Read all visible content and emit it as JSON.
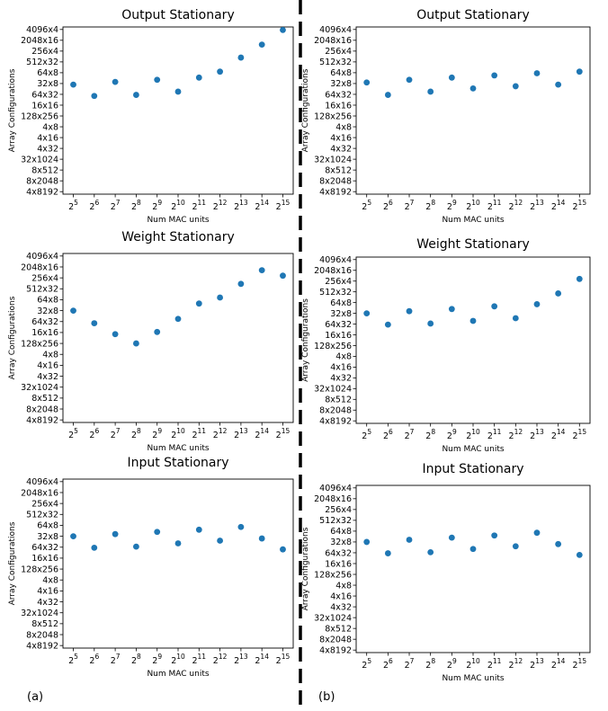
{
  "panel_labels": [
    "(a)",
    "(b)"
  ],
  "chart_data": [
    {
      "type": "scatter",
      "title": "Output Stationary",
      "xlabel": "Num MAC units",
      "ylabel": "Array Configurations",
      "x": [
        "2^5",
        "2^6",
        "2^7",
        "2^8",
        "2^9",
        "2^10",
        "2^11",
        "2^12",
        "2^13",
        "2^14",
        "2^15"
      ],
      "y_ticks": [
        "4096x4",
        "2048x16",
        "256x4",
        "512x32",
        "64x8",
        "32x8",
        "64x32",
        "16x16",
        "128x256",
        "4x8",
        "4x16",
        "4x32",
        "32x1024",
        "8x512",
        "8x2048",
        "4x8192"
      ],
      "y_values": [
        9.9,
        8.85,
        10.15,
        8.95,
        10.35,
        9.25,
        10.55,
        11.1,
        12.4,
        13.6,
        14.95
      ],
      "color": "#1f77b4",
      "series": [
        {
          "values": [
            9.9,
            8.85,
            10.15,
            8.95,
            10.35,
            9.25,
            10.55,
            11.1,
            12.4,
            13.6,
            14.95
          ]
        }
      ]
    },
    {
      "type": "scatter",
      "title": "Output Stationary",
      "xlabel": "Num MAC units",
      "ylabel": "Array Configurations",
      "x": [
        "2^5",
        "2^6",
        "2^7",
        "2^8",
        "2^9",
        "2^10",
        "2^11",
        "2^12",
        "2^13",
        "2^14",
        "2^15"
      ],
      "y_ticks": [
        "4096x4",
        "2048x16",
        "256x4",
        "512x32",
        "64x8",
        "32x8",
        "64x32",
        "16x16",
        "128x256",
        "4x8",
        "4x16",
        "4x32",
        "32x1024",
        "8x512",
        "8x2048",
        "4x8192"
      ],
      "y_values": [
        10.1,
        8.95,
        10.35,
        9.25,
        10.55,
        9.55,
        10.75,
        9.75,
        10.95,
        9.9,
        11.1
      ],
      "color": "#1f77b4",
      "series": [
        {
          "values": [
            10.1,
            8.95,
            10.35,
            9.25,
            10.55,
            9.55,
            10.75,
            9.75,
            10.95,
            9.9,
            11.1
          ]
        }
      ]
    },
    {
      "type": "scatter",
      "title": "Weight Stationary",
      "xlabel": "Num MAC units",
      "ylabel": "Array Configurations",
      "x": [
        "2^5",
        "2^6",
        "2^7",
        "2^8",
        "2^9",
        "2^10",
        "2^11",
        "2^12",
        "2^13",
        "2^14",
        "2^15"
      ],
      "y_ticks": [
        "4096x4",
        "2048x16",
        "256x4",
        "512x32",
        "64x8",
        "32x8",
        "64x32",
        "16x16",
        "128x256",
        "4x8",
        "4x16",
        "4x32",
        "32x1024",
        "8x512",
        "8x2048",
        "4x8192"
      ],
      "y_values": [
        10.0,
        8.85,
        7.85,
        7.0,
        8.05,
        9.25,
        10.65,
        11.2,
        12.45,
        13.7,
        13.2
      ],
      "color": "#1f77b4",
      "series": [
        {
          "values": [
            10.0,
            8.85,
            7.85,
            7.0,
            8.05,
            9.25,
            10.65,
            11.2,
            12.45,
            13.7,
            13.2
          ]
        }
      ]
    },
    {
      "type": "scatter",
      "title": "Weight Stationary",
      "xlabel": "Num MAC units",
      "ylabel": "Array Configurations",
      "x": [
        "2^5",
        "2^6",
        "2^7",
        "2^8",
        "2^9",
        "2^10",
        "2^11",
        "2^12",
        "2^13",
        "2^14",
        "2^15"
      ],
      "y_ticks": [
        "4096x4",
        "2048x16",
        "256x4",
        "512x32",
        "64x8",
        "32x8",
        "64x32",
        "16x16",
        "128x256",
        "4x8",
        "4x16",
        "4x32",
        "32x1024",
        "8x512",
        "8x2048",
        "4x8192"
      ],
      "y_values": [
        10.0,
        8.95,
        10.2,
        9.05,
        10.4,
        9.3,
        10.65,
        9.55,
        10.85,
        11.85,
        13.2
      ],
      "color": "#1f77b4",
      "series": [
        {
          "values": [
            10.0,
            8.95,
            10.2,
            9.05,
            10.4,
            9.3,
            10.65,
            9.55,
            10.85,
            11.85,
            13.2
          ]
        }
      ]
    },
    {
      "type": "scatter",
      "title": "Input Stationary",
      "xlabel": "Num MAC units",
      "ylabel": "Array Configurations",
      "x": [
        "2^5",
        "2^6",
        "2^7",
        "2^8",
        "2^9",
        "2^10",
        "2^11",
        "2^12",
        "2^13",
        "2^14",
        "2^15"
      ],
      "y_ticks": [
        "4096x4",
        "2048x16",
        "256x4",
        "512x32",
        "64x8",
        "32x8",
        "64x32",
        "16x16",
        "128x256",
        "4x8",
        "4x16",
        "4x32",
        "32x1024",
        "8x512",
        "8x2048",
        "4x8192"
      ],
      "y_values": [
        10.0,
        8.95,
        10.2,
        9.05,
        10.4,
        9.35,
        10.6,
        9.6,
        10.85,
        9.8,
        8.8
      ],
      "color": "#1f77b4",
      "series": [
        {
          "values": [
            10.0,
            8.95,
            10.2,
            9.05,
            10.4,
            9.35,
            10.6,
            9.6,
            10.85,
            9.8,
            8.8
          ]
        }
      ]
    },
    {
      "type": "scatter",
      "title": "Input Stationary",
      "xlabel": "Num MAC units",
      "ylabel": "Array Configurations",
      "x": [
        "2^5",
        "2^6",
        "2^7",
        "2^8",
        "2^9",
        "2^10",
        "2^11",
        "2^12",
        "2^13",
        "2^14",
        "2^15"
      ],
      "y_ticks": [
        "4096x4",
        "2048x16",
        "256x4",
        "512x32",
        "64x8",
        "32x8",
        "64x32",
        "16x16",
        "128x256",
        "4x8",
        "4x16",
        "4x32",
        "32x1024",
        "8x512",
        "8x2048",
        "4x8192"
      ],
      "y_values": [
        10.0,
        8.95,
        10.2,
        9.05,
        10.4,
        9.35,
        10.6,
        9.6,
        10.85,
        9.8,
        8.8
      ],
      "color": "#1f77b4",
      "series": [
        {
          "values": [
            10.0,
            8.95,
            10.2,
            9.05,
            10.4,
            9.35,
            10.6,
            9.6,
            10.85,
            9.8,
            8.8
          ]
        }
      ]
    }
  ]
}
